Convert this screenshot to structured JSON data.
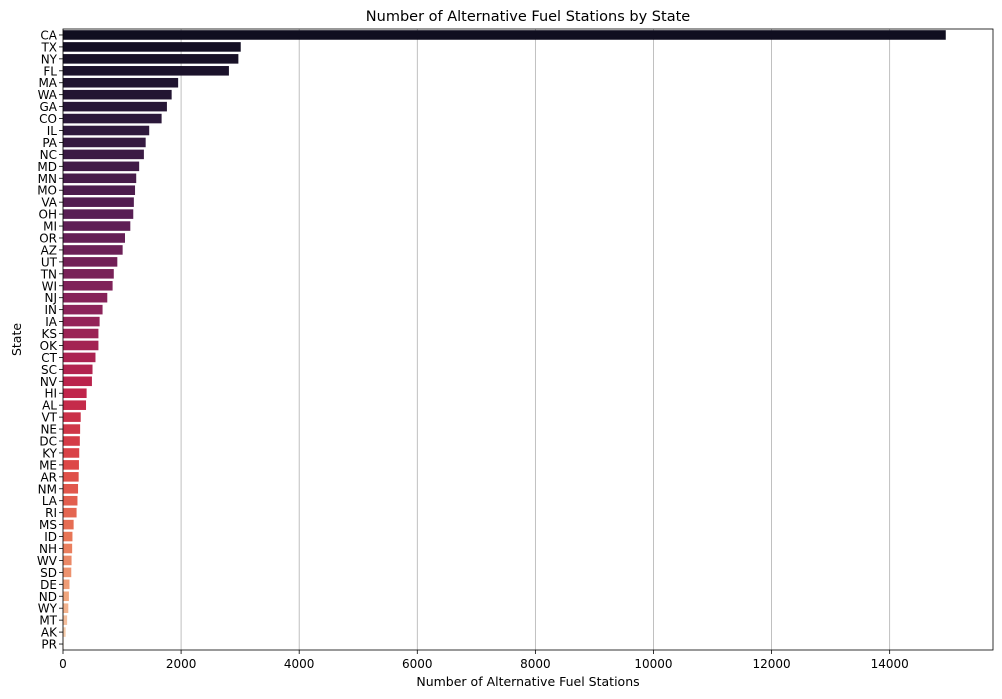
{
  "chart_data": {
    "type": "bar",
    "orientation": "horizontal",
    "title": "Number of Alternative Fuel Stations by State",
    "xlabel": "Number of Alternative Fuel Stations",
    "ylabel": "State",
    "xlim": [
      0,
      15750
    ],
    "xticks": [
      0,
      2000,
      4000,
      6000,
      8000,
      10000,
      12000,
      14000
    ],
    "grid": "vertical",
    "palette": "rocket (dark to light)",
    "categories": [
      "CA",
      "TX",
      "NY",
      "FL",
      "MA",
      "WA",
      "GA",
      "CO",
      "IL",
      "PA",
      "NC",
      "MD",
      "MN",
      "MO",
      "VA",
      "OH",
      "MI",
      "OR",
      "AZ",
      "UT",
      "TN",
      "WI",
      "NJ",
      "IN",
      "IA",
      "KS",
      "OK",
      "CT",
      "SC",
      "NV",
      "HI",
      "AL",
      "VT",
      "NE",
      "DC",
      "KY",
      "ME",
      "AR",
      "NM",
      "LA",
      "RI",
      "MS",
      "ID",
      "NH",
      "WV",
      "SD",
      "DE",
      "ND",
      "WY",
      "MT",
      "AK",
      "PR"
    ],
    "values": [
      14950,
      3010,
      2970,
      2810,
      1950,
      1840,
      1760,
      1670,
      1460,
      1400,
      1370,
      1290,
      1240,
      1220,
      1200,
      1190,
      1140,
      1050,
      1010,
      920,
      860,
      840,
      750,
      670,
      620,
      600,
      600,
      550,
      500,
      490,
      400,
      390,
      300,
      290,
      285,
      275,
      270,
      265,
      255,
      245,
      230,
      180,
      160,
      155,
      145,
      140,
      110,
      100,
      90,
      70,
      45,
      10
    ]
  }
}
